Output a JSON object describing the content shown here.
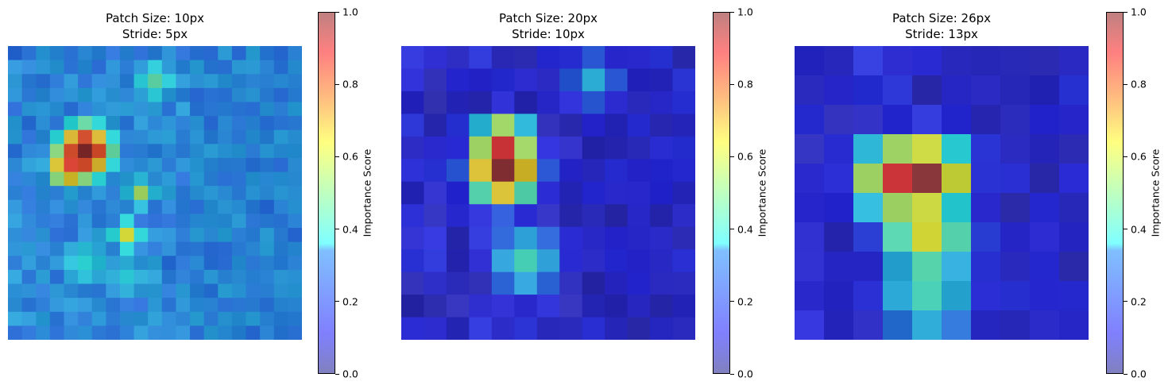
{
  "chart_data": [
    {
      "type": "heatmap",
      "title": "Patch Size: 10px\nStride: 5px",
      "colorbar_label": "Importance Score",
      "colorbar_ticks": [
        "0.0",
        "0.2",
        "0.4",
        "0.6",
        "0.8",
        "1.0"
      ],
      "vmin": 0.0,
      "vmax": 1.0,
      "colormap": "jet",
      "alpha": 0.5,
      "grid_rows": 21,
      "grid_cols": 21,
      "hotspots": [
        {
          "r": 7,
          "c": 5,
          "v": 1.0,
          "s": 1.6
        },
        {
          "r": 8,
          "c": 4,
          "v": 0.85,
          "s": 1.4
        },
        {
          "r": 13,
          "c": 8,
          "v": 0.62,
          "s": 1.0
        },
        {
          "r": 10,
          "c": 9,
          "v": 0.55,
          "s": 1.0
        },
        {
          "r": 2,
          "c": 10,
          "v": 0.45,
          "s": 1.5
        },
        {
          "r": 15,
          "c": 5,
          "v": 0.38,
          "s": 2.2
        },
        {
          "r": 16,
          "c": 8,
          "v": 0.36,
          "s": 2.0
        }
      ],
      "base": 0.26
    },
    {
      "type": "heatmap",
      "title": "Patch Size: 20px\nStride: 10px",
      "colorbar_label": "Importance Score",
      "colorbar_ticks": [
        "0.0",
        "0.2",
        "0.4",
        "0.6",
        "0.8",
        "1.0"
      ],
      "vmin": 0.0,
      "vmax": 1.0,
      "colormap": "jet",
      "alpha": 0.5,
      "grid_rows": 13,
      "grid_cols": 13,
      "hotspots": [
        {
          "r": 5,
          "c": 4,
          "v": 1.0,
          "s": 1.1
        },
        {
          "r": 4,
          "c": 4,
          "v": 0.9,
          "s": 1.0
        },
        {
          "r": 9,
          "c": 5,
          "v": 0.42,
          "s": 1.2
        },
        {
          "r": 1,
          "c": 8,
          "v": 0.32,
          "s": 1.0
        }
      ],
      "base": 0.1
    },
    {
      "type": "heatmap",
      "title": "Patch Size: 26px\nStride: 13px",
      "colorbar_label": "Importance Score",
      "colorbar_ticks": [
        "0.0",
        "0.2",
        "0.4",
        "0.6",
        "0.8",
        "1.0"
      ],
      "vmin": 0.0,
      "vmax": 1.0,
      "colormap": "jet",
      "alpha": 0.5,
      "grid_rows": 10,
      "grid_cols": 10,
      "hotspots": [
        {
          "r": 4,
          "c": 4,
          "v": 1.0,
          "s": 1.0
        },
        {
          "r": 4,
          "c": 3,
          "v": 0.9,
          "s": 1.0
        },
        {
          "r": 6,
          "c": 4,
          "v": 0.62,
          "s": 1.2
        },
        {
          "r": 8,
          "c": 4,
          "v": 0.42,
          "s": 1.3
        }
      ],
      "base": 0.1
    }
  ]
}
